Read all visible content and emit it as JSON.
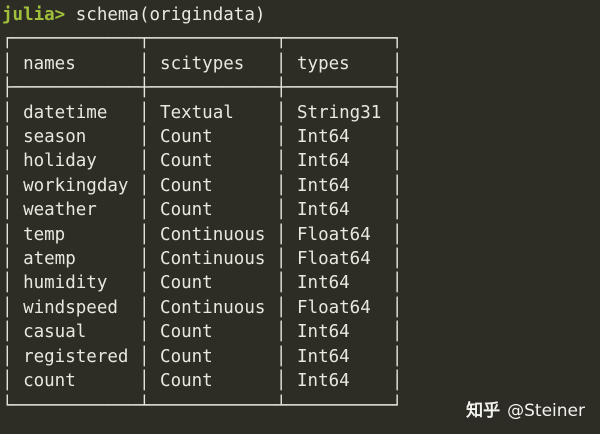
{
  "colors": {
    "background": "#2d2c25",
    "foreground": "#e9e7de",
    "prompt_accent": "#a0c03c",
    "watermark": "#f2f2ef"
  },
  "terminal": {
    "prompt": "julia>",
    "command": "schema(origindata)"
  },
  "schema_table": {
    "columns": [
      "names",
      "scitypes",
      "types"
    ],
    "rows": [
      {
        "name": "datetime",
        "scitype": "Textual",
        "type": "String31"
      },
      {
        "name": "season",
        "scitype": "Count",
        "type": "Int64"
      },
      {
        "name": "holiday",
        "scitype": "Count",
        "type": "Int64"
      },
      {
        "name": "workingday",
        "scitype": "Count",
        "type": "Int64"
      },
      {
        "name": "weather",
        "scitype": "Count",
        "type": "Int64"
      },
      {
        "name": "temp",
        "scitype": "Continuous",
        "type": "Float64"
      },
      {
        "name": "atemp",
        "scitype": "Continuous",
        "type": "Float64"
      },
      {
        "name": "humidity",
        "scitype": "Count",
        "type": "Int64"
      },
      {
        "name": "windspeed",
        "scitype": "Continuous",
        "type": "Float64"
      },
      {
        "name": "casual",
        "scitype": "Count",
        "type": "Int64"
      },
      {
        "name": "registered",
        "scitype": "Count",
        "type": "Int64"
      },
      {
        "name": "count",
        "scitype": "Count",
        "type": "Int64"
      }
    ]
  },
  "watermark": {
    "site": "知乎",
    "user": "@Steiner"
  }
}
